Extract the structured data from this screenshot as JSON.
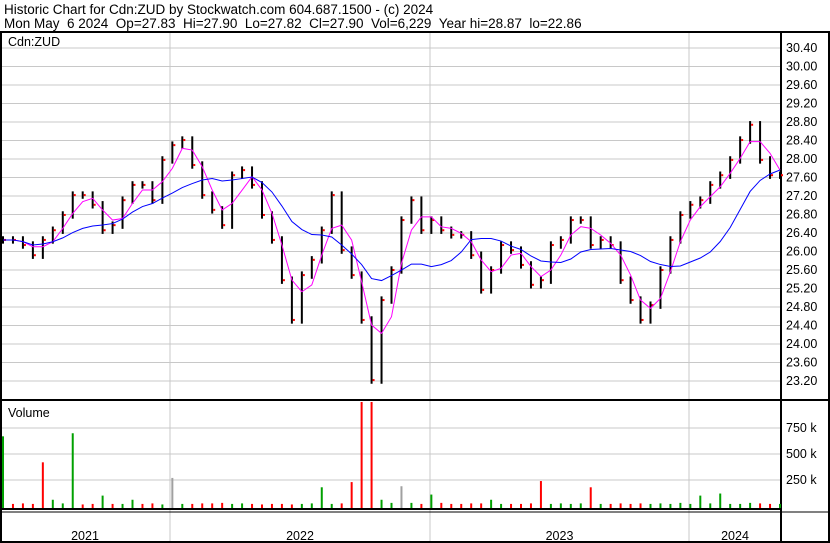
{
  "header": {
    "title": "Historic Chart for Cdn:ZUD by Stockwatch.com 604.687.1500 - (c) 2024",
    "quote": "Mon May  6 2024  Op=27.83  Hi=27.90  Lo=27.82  Cl=27.90  Vol=6,229  Year hi=28.87  lo=22.86"
  },
  "colors": {
    "price_bar": "#000000",
    "close_tick": "#ff0000",
    "ma_short": "#ff00ff",
    "ma_long": "#0000ff",
    "vol_up": "#00a000",
    "vol_down": "#ff0000",
    "vol_flat": "#a0a0a0",
    "grid": "#c8c8c8"
  },
  "chart_data": [
    {
      "type": "line",
      "symbol": "Cdn:ZUD",
      "ylim": [
        23.0,
        30.6
      ],
      "y_ticks": [
        "30.40",
        "30.00",
        "29.60",
        "29.20",
        "28.80",
        "28.40",
        "28.00",
        "27.60",
        "27.20",
        "26.80",
        "26.40",
        "26.00",
        "25.60",
        "25.20",
        "24.80",
        "24.40",
        "24.00",
        "23.60",
        "23.20"
      ],
      "x_ticks": [
        "2021",
        "2022",
        "2023",
        "2024"
      ],
      "grid": true,
      "close": [
        26.25,
        26.25,
        26.14,
        25.92,
        26.25,
        26.46,
        26.79,
        27.22,
        27.22,
        27.01,
        26.46,
        26.57,
        27.11,
        27.44,
        27.44,
        27.11,
        27.98,
        28.3,
        28.41,
        27.87,
        27.22,
        26.9,
        26.57,
        27.65,
        27.76,
        27.44,
        26.79,
        26.25,
        25.38,
        24.52,
        25.49,
        25.82,
        26.46,
        27.22,
        26.03,
        25.49,
        24.52,
        23.22,
        24.95,
        25.6,
        26.68,
        27.11,
        26.46,
        26.68,
        26.46,
        26.36,
        26.36,
        25.92,
        25.17,
        25.6,
        26.14,
        26.03,
        25.71,
        25.28,
        25.38,
        26.14,
        26.25,
        26.68,
        26.68,
        26.14,
        26.25,
        26.14,
        25.38,
        24.95,
        24.52,
        24.84,
        25.6,
        26.25,
        26.79,
        27.01,
        27.11,
        27.44,
        27.65,
        27.98,
        28.41,
        28.74,
        27.98,
        27.65,
        27.65
      ]
    },
    {
      "type": "bar",
      "title": "Volume",
      "y_ticks": [
        "750 k",
        "500 k",
        "250 k"
      ],
      "ylim": [
        0,
        1000
      ],
      "unit": "k",
      "volume": [
        670,
        20,
        25,
        20,
        420,
        60,
        25,
        700,
        15,
        20,
        100,
        20,
        20,
        60,
        20,
        25,
        15,
        270,
        20,
        20,
        25,
        25,
        30,
        20,
        25,
        20,
        15,
        20,
        20,
        15,
        20,
        25,
        180,
        20,
        25,
        230,
        1200,
        1200,
        60,
        30,
        190,
        30,
        20,
        110,
        30,
        20,
        20,
        25,
        25,
        60,
        20,
        20,
        20,
        25,
        240,
        20,
        25,
        20,
        25,
        180,
        20,
        20,
        25,
        20,
        25,
        20,
        25,
        20,
        30,
        20,
        100,
        25,
        120,
        20,
        20,
        30,
        25,
        20,
        20
      ],
      "volume_color": [
        "up",
        "down",
        "down",
        "down",
        "down",
        "up",
        "up",
        "up",
        "down",
        "down",
        "up",
        "down",
        "up",
        "up",
        "down",
        "down",
        "up",
        "flat",
        "up",
        "down",
        "down",
        "down",
        "down",
        "up",
        "up",
        "down",
        "down",
        "down",
        "down",
        "down",
        "up",
        "up",
        "up",
        "up",
        "down",
        "down",
        "down",
        "down",
        "up",
        "up",
        "flat",
        "up",
        "down",
        "up",
        "down",
        "down",
        "down",
        "down",
        "down",
        "up",
        "up",
        "down",
        "down",
        "down",
        "down",
        "up",
        "up",
        "up",
        "up",
        "down",
        "up",
        "down",
        "down",
        "down",
        "down",
        "up",
        "up",
        "up",
        "up",
        "up",
        "up",
        "up",
        "up",
        "up",
        "up",
        "up",
        "down",
        "down",
        "up"
      ]
    }
  ]
}
